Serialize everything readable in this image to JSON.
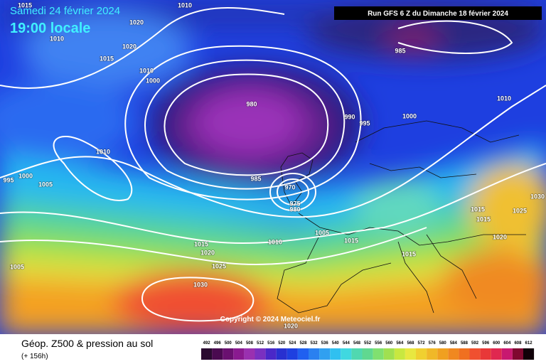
{
  "header": {
    "date": "Samedi 24 février 2024",
    "time": "19:00 locale",
    "run": "Run GFS 6 Z du Dimanche 18 février 2024"
  },
  "copyright": "Copyright © 2024 Meteociel.fr",
  "footer": {
    "title": "Géop. Z500 & pression au sol",
    "lead": "(+ 156h)"
  },
  "scale": {
    "labels": [
      492,
      496,
      500,
      504,
      508,
      512,
      516,
      520,
      524,
      528,
      532,
      536,
      540,
      544,
      548,
      552,
      556,
      560,
      564,
      568,
      572,
      576,
      580,
      584,
      588,
      592,
      596,
      600,
      604,
      608,
      612
    ]
  },
  "isobars": [
    1015,
    1010,
    1020,
    1010,
    1020,
    1015,
    1010,
    1000,
    985,
    980,
    990,
    995,
    1000,
    1010,
    1010,
    995,
    1000,
    1005,
    985,
    970,
    975,
    980,
    1030,
    1015,
    1025,
    1015,
    1020,
    1005,
    1010,
    1015,
    1015,
    1020,
    1025,
    1005,
    1015,
    1030,
    1020
  ]
}
